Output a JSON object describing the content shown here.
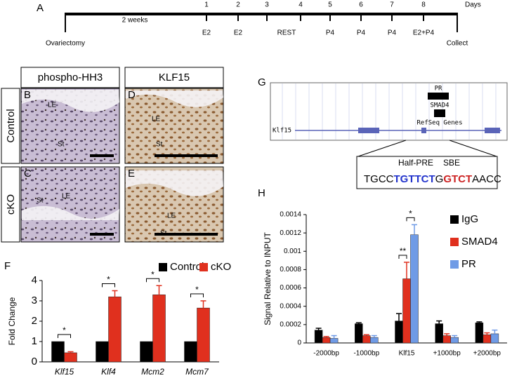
{
  "panel_a": {
    "label": "A",
    "days_label": "Days",
    "duration": "2 weeks",
    "start": "Ovariectomy",
    "end": "Collect",
    "days": [
      "1",
      "2",
      "3",
      "4",
      "5",
      "6",
      "7",
      "8"
    ],
    "treatments": [
      "E2",
      "E2",
      "REST",
      "P4",
      "P4",
      "P4",
      "E2+P4"
    ]
  },
  "micrographs": {
    "column_titles": [
      "phospho-HH3",
      "KLF15"
    ],
    "row_labels": [
      "Control",
      "cKO"
    ],
    "panels": [
      {
        "label": "B",
        "annotations": [
          "LE",
          "St"
        ]
      },
      {
        "label": "D",
        "annotations": [
          "LE",
          "St"
        ]
      },
      {
        "label": "C",
        "annotations": [
          "St",
          "LE"
        ]
      },
      {
        "label": "E",
        "annotations": [
          "LE",
          "St"
        ]
      }
    ]
  },
  "panel_g": {
    "label": "G",
    "tracks": [
      "PR",
      "SMAD4",
      "RefSeq Genes"
    ],
    "gene": "Klf15",
    "motif_labels": [
      {
        "text": "Half-PRE",
        "color": "#2233cc"
      },
      {
        "text": "SBE",
        "color": "#cc2222"
      }
    ],
    "sequence": [
      {
        "text": "TGCC",
        "color": "#000000"
      },
      {
        "text": "TGTTCT",
        "color": "#2233cc"
      },
      {
        "text": "G",
        "color": "#000000"
      },
      {
        "text": "GTCT",
        "color": "#cc2222"
      },
      {
        "text": "AACC",
        "color": "#000000"
      }
    ]
  },
  "chart_data": [
    {
      "type": "bar",
      "panel_label": "F",
      "ylabel": "Fold Change",
      "categories": [
        "Klf15",
        "Klf4",
        "Mcm2",
        "Mcm7"
      ],
      "series": [
        {
          "name": "Control",
          "color": "#000000",
          "values": [
            1,
            1,
            1,
            1
          ]
        },
        {
          "name": "cKO",
          "color": "#e0301e",
          "values": [
            0.45,
            3.2,
            3.3,
            2.65
          ],
          "errors": [
            0.05,
            0.3,
            0.45,
            0.35
          ]
        }
      ],
      "significance": [
        "*",
        "*",
        "*",
        "*"
      ],
      "ylim": [
        0,
        4
      ],
      "yticks": [
        0,
        1,
        2,
        3,
        4
      ]
    },
    {
      "type": "bar",
      "panel_label": "H",
      "ylabel": "Signal Relative to INPUT",
      "categories": [
        "-2000bp",
        "-1000bp",
        "Klf15",
        "+1000bp",
        "+2000bp"
      ],
      "series": [
        {
          "name": "IgG",
          "color": "#000000",
          "values": [
            0.00014,
            0.00021,
            0.00024,
            0.00021,
            0.00022
          ],
          "errors": [
            2e-05,
            1e-05,
            8e-05,
            3e-05,
            1e-05
          ]
        },
        {
          "name": "SMAD4",
          "color": "#e0301e",
          "values": [
            6e-05,
            8e-05,
            0.0007,
            8e-05,
            9e-05
          ],
          "errors": [
            1e-05,
            1e-05,
            0.00018,
            2e-05,
            2e-05
          ]
        },
        {
          "name": "PR",
          "color": "#6f9be6",
          "values": [
            5e-05,
            6e-05,
            0.00118,
            6e-05,
            0.0001
          ],
          "errors": [
            3e-05,
            2e-05,
            0.00011,
            2e-05,
            4e-05
          ]
        }
      ],
      "significance": [
        "**",
        "*"
      ],
      "ylim": [
        0,
        0.0014
      ],
      "yticks": [
        0,
        0.0002,
        0.0004,
        0.0006,
        0.0008,
        0.001,
        0.0012,
        0.0014
      ]
    }
  ]
}
